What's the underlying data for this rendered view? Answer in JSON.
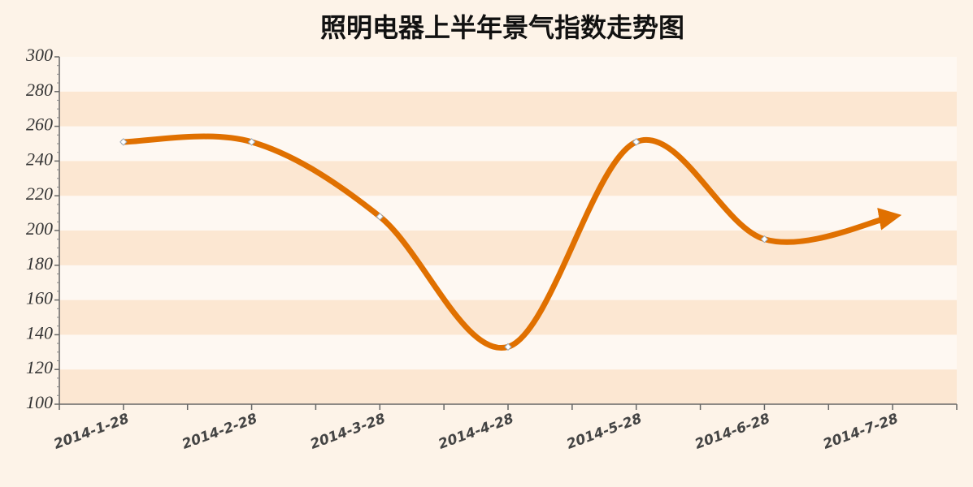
{
  "chart_data": {
    "type": "line",
    "title": "照明电器上半年景气指数走势图",
    "categories": [
      "2014-1-28",
      "2014-2-28",
      "2014-3-28",
      "2014-4-28",
      "2014-5-28",
      "2014-6-28",
      "2014-7-28"
    ],
    "values": [
      251,
      251,
      208,
      133,
      251,
      195,
      208
    ],
    "color": "#e07000",
    "ylim": [
      100,
      300
    ],
    "yticks": [
      100,
      120,
      140,
      160,
      180,
      200,
      220,
      240,
      260,
      280,
      300
    ],
    "grid": true
  }
}
